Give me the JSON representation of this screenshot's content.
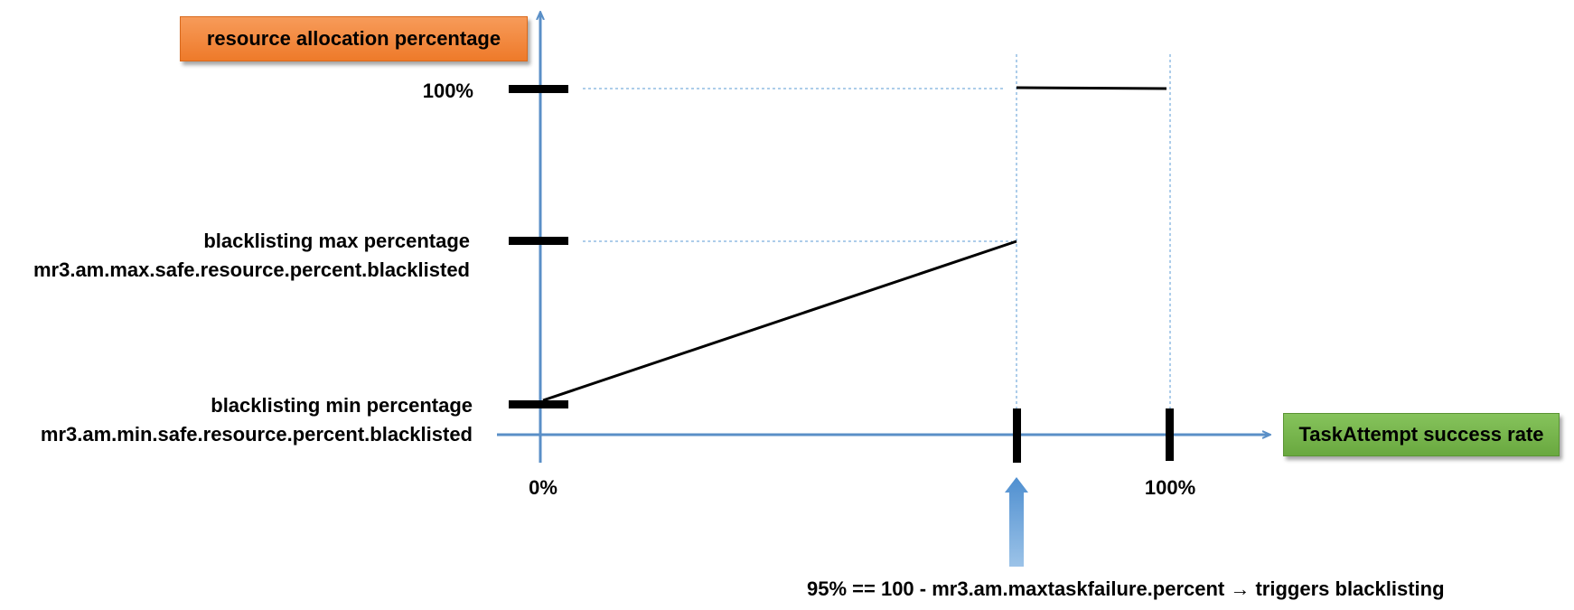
{
  "colors": {
    "axis": "#5a8fc7",
    "guide": "#5b9bd5",
    "curve": "#000000",
    "tick": "#000000",
    "y_title_box": "#f28a3c",
    "x_title_box": "#77b54b",
    "arrow": "#5a97d4"
  },
  "y_axis_title": "resource allocation percentage",
  "x_axis_title": "TaskAttempt success rate",
  "y_labels": {
    "top": "100%",
    "max_line1": "blacklisting max percentage",
    "max_line2": "mr3.am.max.safe.resource.percent.blacklisted",
    "min_line1": "blacklisting min percentage",
    "min_line2": "mr3.am.min.safe.resource.percent.blacklisted"
  },
  "x_labels": {
    "zero": "0%",
    "hundred": "100%"
  },
  "annotation": "95% == 100 - mr3.am.maxtaskfailure.percent → triggers blacklisting"
}
